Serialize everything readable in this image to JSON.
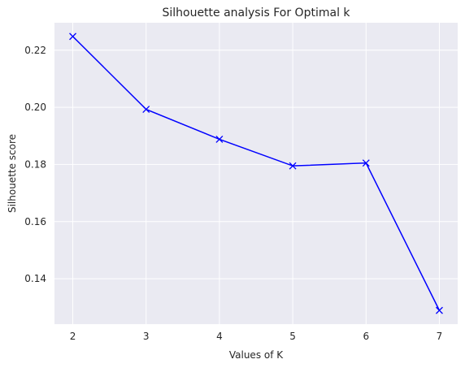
{
  "chart_data": {
    "type": "line",
    "title": "Silhouette analysis For Optimal k",
    "xlabel": "Values of K",
    "ylabel": "Silhouette score",
    "x": [
      2,
      3,
      4,
      5,
      6,
      7
    ],
    "series": [
      {
        "values": [
          0.2248,
          0.1993,
          0.1888,
          0.1795,
          0.1805,
          0.1289
        ],
        "color": "#0000ff",
        "marker": "x"
      }
    ],
    "xticks": [
      "2",
      "3",
      "4",
      "5",
      "6",
      "7"
    ],
    "yticks": [
      "0.14",
      "0.16",
      "0.18",
      "0.20",
      "0.22"
    ],
    "ytick_values": [
      0.14,
      0.16,
      0.18,
      0.2,
      0.22
    ],
    "xlim": [
      1.75,
      7.25
    ],
    "ylim": [
      0.1241,
      0.2296
    ],
    "grid": true,
    "background": "#eaeaf2"
  }
}
